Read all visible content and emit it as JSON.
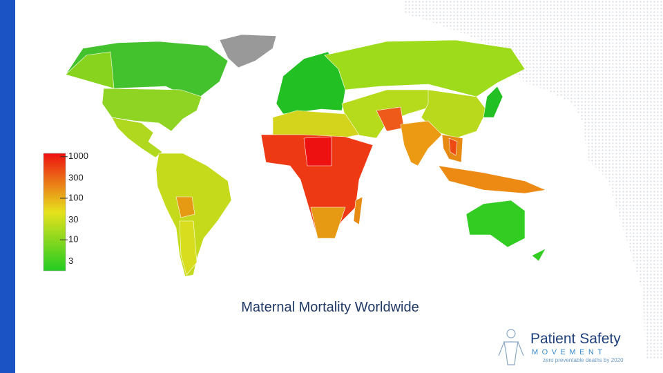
{
  "title": "Maternal Mortality Worldwide",
  "legend": {
    "scale": "log",
    "lim": [
      1.8,
      1200
    ],
    "ticks": [
      1000,
      300,
      100,
      30,
      10,
      3
    ],
    "colors": [
      "#22cc22",
      "#e6e21c",
      "#ee1111"
    ]
  },
  "logo": {
    "name": "Patient Safety",
    "subtitle": "MOVEMENT",
    "tagline": "zero preventable deaths by 2020"
  }
}
